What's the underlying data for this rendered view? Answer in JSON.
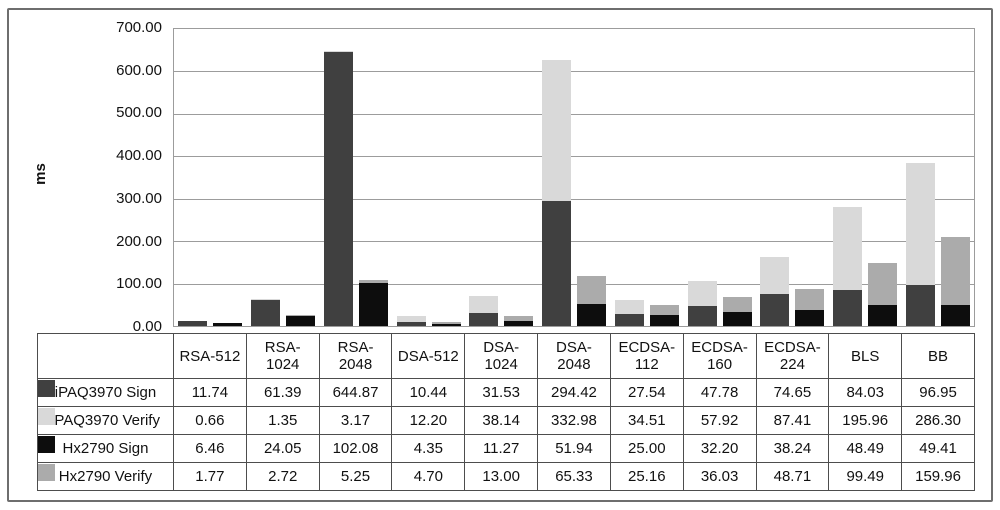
{
  "figure": {
    "background": "#ffffff",
    "outer_border_color": "#6e6e6e",
    "plot_border_color": "#9c9c9c",
    "gridline_color": "#9c9c9c",
    "table_border_color": "#4d4d4d"
  },
  "chart_data": {
    "type": "bar",
    "stacked": true,
    "title": "",
    "xlabel": "",
    "ylabel": "ms",
    "ylim": [
      0,
      700
    ],
    "ytick_step": 100,
    "ytick_labels": [
      "700.00",
      "600.00",
      "500.00",
      "400.00",
      "300.00",
      "200.00",
      "100.00",
      "0.00"
    ],
    "grid": "horizontal",
    "legend_position": "table-left",
    "categories": [
      "RSA-512",
      "RSA-1024",
      "RSA-2048",
      "DSA-512",
      "DSA-1024",
      "DSA-2048",
      "ECDSA-112",
      "ECDSA-160",
      "ECDSA-224",
      "BLS",
      "BB"
    ],
    "stacks": [
      {
        "name": "iPAQ3970",
        "series_indexes": [
          0,
          1
        ]
      },
      {
        "name": "Hx2790",
        "series_indexes": [
          2,
          3
        ]
      }
    ],
    "series": [
      {
        "name": "iPAQ3970 Sign",
        "color": "#404040",
        "values": [
          11.74,
          61.39,
          644.87,
          10.44,
          31.53,
          294.42,
          27.54,
          47.78,
          74.65,
          84.03,
          96.95
        ]
      },
      {
        "name": "iPAQ3970 Verify",
        "color": "#d9d9d9",
        "values": [
          0.66,
          1.35,
          3.17,
          12.2,
          38.14,
          332.98,
          34.51,
          57.92,
          87.41,
          195.96,
          286.3
        ]
      },
      {
        "name": "Hx2790 Sign",
        "color": "#0d0d0d",
        "values": [
          6.46,
          24.05,
          102.08,
          4.35,
          11.27,
          51.94,
          25.0,
          32.2,
          38.24,
          48.49,
          49.41
        ]
      },
      {
        "name": "Hx2790 Verify",
        "color": "#ababab",
        "values": [
          1.77,
          2.72,
          5.25,
          4.7,
          13.0,
          65.33,
          25.16,
          36.03,
          48.71,
          99.49,
          159.96
        ]
      }
    ]
  }
}
